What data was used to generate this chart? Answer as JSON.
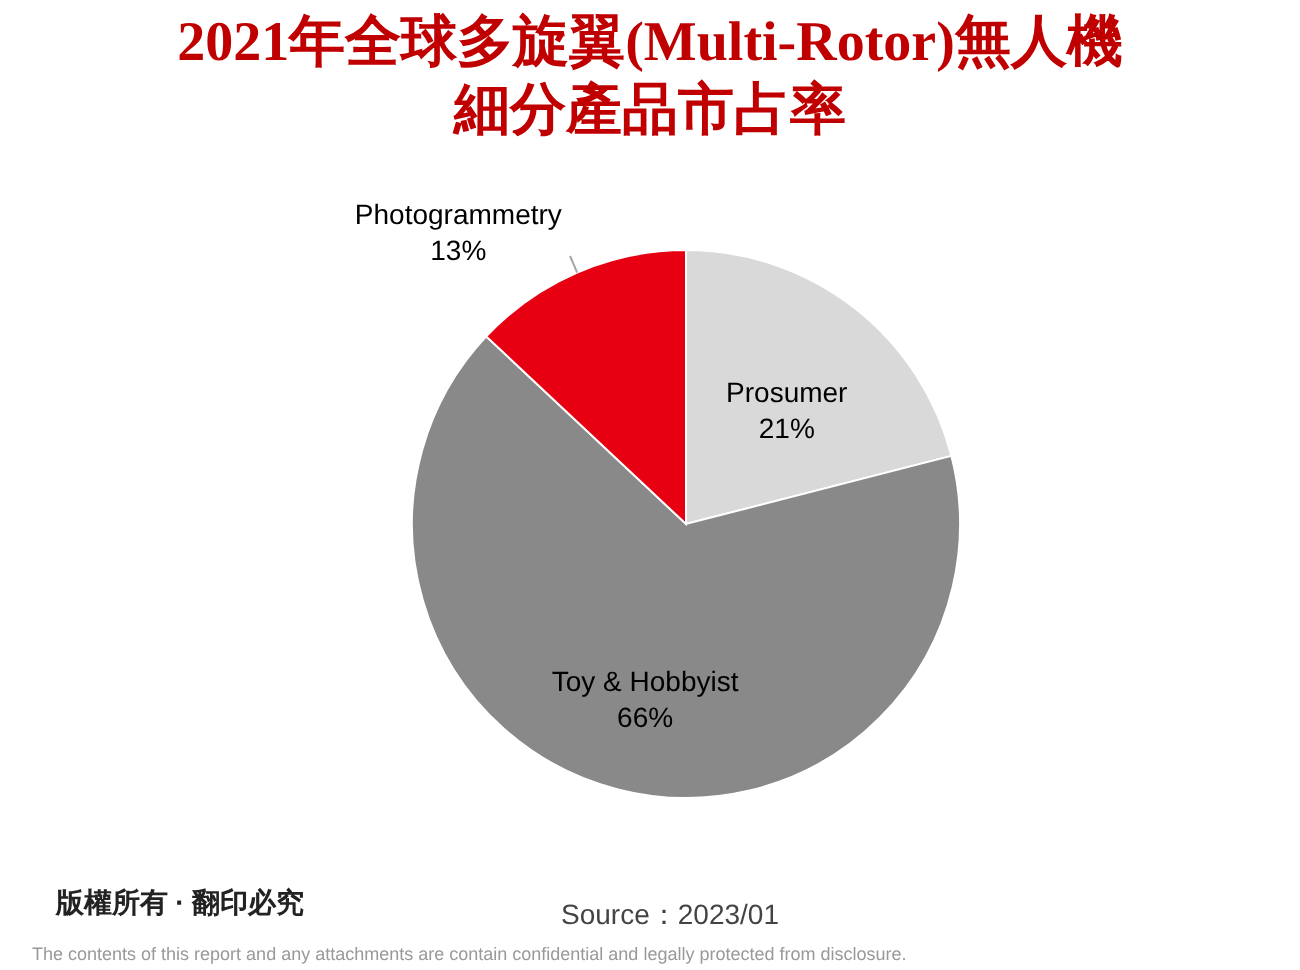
{
  "chart_data": {
    "type": "pie",
    "title": "2021年全球多旋翼(Multi-Rotor)無人機細分產品市占率",
    "categories": [
      "Prosumer",
      "Toy & Hobbyist",
      "Photogrammetry"
    ],
    "values": [
      21,
      66,
      13
    ],
    "colors": [
      "#d9d9d9",
      "#898989",
      "#e60012"
    ],
    "value_labels": [
      "21%",
      "66%",
      "13%"
    ],
    "annotations": [
      "版權所有 · 翻印必究",
      "Source：2023/01",
      "The contents of this report and any attachments are contain confidential and legally protected from disclosure."
    ]
  }
}
